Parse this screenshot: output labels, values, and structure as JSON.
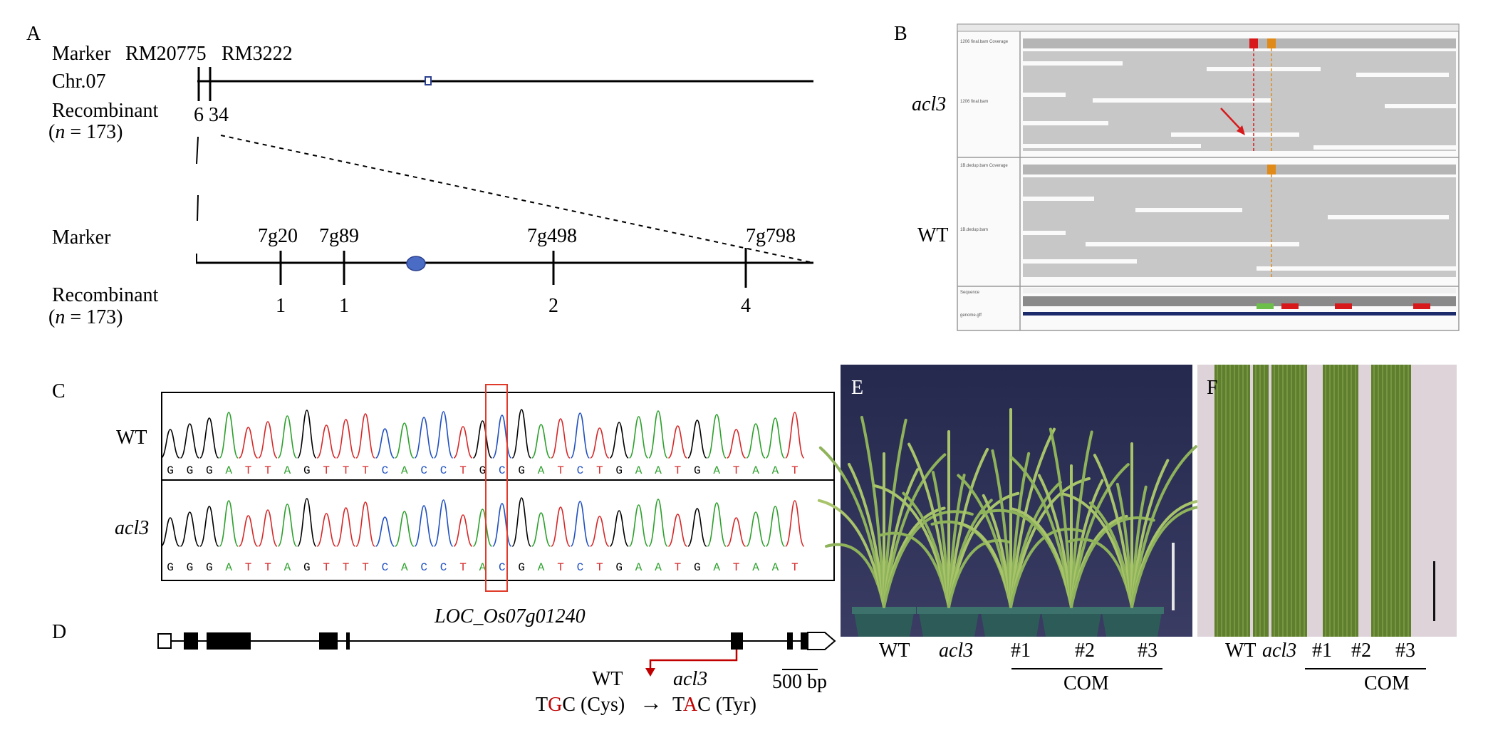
{
  "panels": {
    "A": "A",
    "B": "B",
    "C": "C",
    "D": "D",
    "E": "E",
    "F": "F"
  },
  "panelA": {
    "marker_label": "Marker",
    "marker_rm1": "RM20775",
    "marker_rm2": "RM3222",
    "chr_label": "Chr.07",
    "recombinant_label": "Recombinant",
    "n_label": "(n = 173)",
    "rec_top_1": "6",
    "rec_top_2": "34",
    "markers_fine": [
      "7g20",
      "7g89",
      "7g498",
      "7g798"
    ],
    "rec_fine": [
      "1",
      "1",
      "2",
      "4"
    ]
  },
  "panelB": {
    "row_labels": [
      "acl3",
      "WT"
    ]
  },
  "panelC": {
    "row_labels": [
      "WT",
      "acl3"
    ],
    "wt_seq": [
      "G",
      "G",
      "G",
      "A",
      "T",
      "T",
      "A",
      "G",
      "T",
      "T",
      "T",
      "C",
      "A",
      "C",
      "C",
      "T",
      "G",
      "C",
      "G",
      "A",
      "T",
      "C",
      "T",
      "G",
      "A",
      "A",
      "T",
      "G",
      "A",
      "T",
      "A",
      "A",
      "T"
    ],
    "acl3_seq": [
      "G",
      "G",
      "G",
      "A",
      "T",
      "T",
      "A",
      "G",
      "T",
      "T",
      "T",
      "C",
      "A",
      "C",
      "C",
      "T",
      "A",
      "C",
      "G",
      "A",
      "T",
      "C",
      "T",
      "G",
      "A",
      "A",
      "T",
      "G",
      "A",
      "T",
      "A",
      "A",
      "T"
    ],
    "base_colors": {
      "G": "#000000",
      "A": "#2ca02c",
      "T": "#d62728",
      "C": "#1f4fbf"
    }
  },
  "panelD": {
    "gene_name": "LOC_Os07g01240",
    "wt_label": "WT",
    "mut_label": "acl3",
    "wt_codon_pre": "T",
    "wt_codon_mut": "G",
    "wt_codon_post": "C (Cys)",
    "mut_codon_pre": "T",
    "mut_codon_mut": "A",
    "mut_codon_post": "C (Tyr)",
    "arrow": "→",
    "scale_label": "500 bp",
    "mut_color": "#c00000"
  },
  "panelE": {
    "labels": [
      "WT",
      "acl3",
      "#1",
      "#2",
      "#3"
    ],
    "com_label": "COM"
  },
  "panelF": {
    "labels": [
      "WT",
      "acl3",
      "#1",
      "#2",
      "#3"
    ],
    "com_label": "COM"
  }
}
